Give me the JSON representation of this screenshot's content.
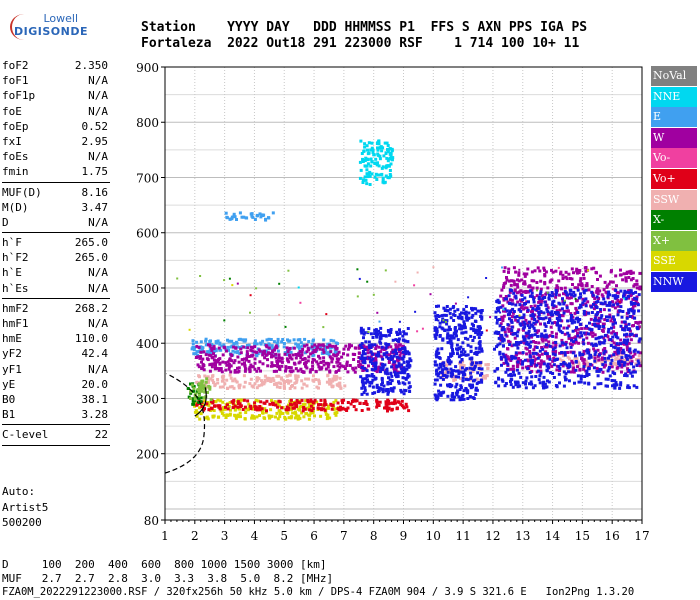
{
  "logo": {
    "line1": "Lowell",
    "line2": "DIGISONDE"
  },
  "header": {
    "line1": "Station    YYYY DAY   DDD HHMMSS P1  FFS S AXN PPS IGA PS",
    "line2": "Fortaleza  2022 Out18 291 223000 RSF    1 714 100 10+ 11"
  },
  "params": {
    "group1": [
      {
        "k": "foF2",
        "v": "2.350"
      },
      {
        "k": "foF1",
        "v": "N/A"
      },
      {
        "k": "foF1p",
        "v": "N/A"
      },
      {
        "k": "foE",
        "v": "N/A"
      },
      {
        "k": "foEp",
        "v": "0.52"
      },
      {
        "k": "fxI",
        "v": "2.95"
      },
      {
        "k": "foEs",
        "v": "N/A"
      },
      {
        "k": "fmin",
        "v": "1.75"
      }
    ],
    "group2": [
      {
        "k": "MUF(D)",
        "v": "8.16"
      },
      {
        "k": "M(D)",
        "v": "3.47"
      },
      {
        "k": "D",
        "v": "N/A"
      }
    ],
    "group3": [
      {
        "k": "h`F",
        "v": "265.0"
      },
      {
        "k": "h`F2",
        "v": "265.0"
      },
      {
        "k": "h`E",
        "v": "N/A"
      },
      {
        "k": "h`Es",
        "v": "N/A"
      }
    ],
    "group4": [
      {
        "k": "hmF2",
        "v": "268.2"
      },
      {
        "k": "hmF1",
        "v": "N/A"
      },
      {
        "k": "hmE",
        "v": "110.0"
      },
      {
        "k": "yF2",
        "v": "42.4"
      },
      {
        "k": "yF1",
        "v": "N/A"
      },
      {
        "k": "yE",
        "v": "20.0"
      },
      {
        "k": "B0",
        "v": "38.1"
      },
      {
        "k": "B1",
        "v": "3.28"
      }
    ],
    "group5": [
      {
        "k": "C-level",
        "v": "22"
      }
    ]
  },
  "artist": {
    "line1": "Auto:",
    "line2": "Artist5",
    "line3": "500200"
  },
  "muf_table": {
    "d_line": "D     100  200  400  600  800 1000 1500 3000 [km]",
    "muf_line": "MUF   2.7  2.7  2.8  3.0  3.3  3.8  5.0  8.2 [MHz]"
  },
  "footer": "FZA0M_2022291223000.RSF / 320fx256h 50 kHz 5.0 km / DPS-4 FZA0M 904 / 3.9 S 321.6 E   Ion2Png 1.3.20",
  "legend": [
    {
      "label": "NoVal",
      "color": "#808080"
    },
    {
      "label": "NNE",
      "color": "#00d8f0"
    },
    {
      "label": "E",
      "color": "#40a0f0"
    },
    {
      "label": "W",
      "color": "#a000a0"
    },
    {
      "label": "Vo-",
      "color": "#f040a0"
    },
    {
      "label": "Vo+",
      "color": "#e00018"
    },
    {
      "label": "SSW",
      "color": "#f0b0b0"
    },
    {
      "label": "X-",
      "color": "#008000"
    },
    {
      "label": "X+",
      "color": "#80c040"
    },
    {
      "label": "SSE",
      "color": "#d8d800"
    },
    {
      "label": "NNW",
      "color": "#1818e0"
    }
  ],
  "chart_data": {
    "type": "scatter",
    "xlabel": "",
    "ylabel": "",
    "xlim": [
      1,
      17
    ],
    "ylim": [
      80,
      900
    ],
    "x_ticks": [
      "1",
      "2",
      "3",
      "4",
      "5",
      "6",
      "7",
      "8",
      "9",
      "10",
      "11",
      "12",
      "13",
      "14",
      "15",
      "16",
      "17"
    ],
    "y_ticks": [
      "900",
      "800",
      "700",
      "600",
      "500",
      "400",
      "300",
      "200",
      "80"
    ],
    "grid": true,
    "legend_placement": "right",
    "series": [
      {
        "name": "SSE",
        "clusters": [
          {
            "x": [
              1.9,
              6.8
            ],
            "y": [
              265,
              300
            ]
          }
        ]
      },
      {
        "name": "Vo+",
        "clusters": [
          {
            "x": [
              2.0,
              9.2
            ],
            "y": [
              280,
              300
            ]
          }
        ]
      },
      {
        "name": "SSW",
        "clusters": [
          {
            "x": [
              2.0,
              7.0
            ],
            "y": [
              320,
              345
            ]
          },
          {
            "x": [
              10.2,
              11.8
            ],
            "y": [
              335,
              370
            ]
          },
          {
            "x": [
              14.0,
              16.9
            ],
            "y": [
              360,
              380
            ]
          }
        ]
      },
      {
        "name": "E",
        "clusters": [
          {
            "x": [
              1.8,
              6.8
            ],
            "y": [
              380,
              410
            ]
          },
          {
            "x": [
              3.0,
              4.6
            ],
            "y": [
              625,
              640
            ]
          }
        ]
      },
      {
        "name": "W",
        "clusters": [
          {
            "x": [
              2.0,
              9.0
            ],
            "y": [
              350,
              400
            ]
          },
          {
            "x": [
              12.2,
              16.9
            ],
            "y": [
              350,
              540
            ]
          }
        ]
      },
      {
        "name": "NNW",
        "clusters": [
          {
            "x": [
              7.5,
              9.2
            ],
            "y": [
              310,
              430
            ]
          },
          {
            "x": [
              10.0,
              11.6
            ],
            "y": [
              300,
              470
            ]
          },
          {
            "x": [
              12.0,
              16.9
            ],
            "y": [
              320,
              500
            ]
          }
        ]
      },
      {
        "name": "NNE",
        "clusters": [
          {
            "x": [
              7.5,
              8.6
            ],
            "y": [
              690,
              770
            ]
          }
        ]
      },
      {
        "name": "X-",
        "clusters": [
          {
            "x": [
              1.7,
              2.2
            ],
            "y": [
              290,
              330
            ]
          }
        ]
      },
      {
        "name": "X+",
        "clusters": [
          {
            "x": [
              1.8,
              2.5
            ],
            "y": [
              300,
              340
            ]
          }
        ]
      }
    ]
  }
}
